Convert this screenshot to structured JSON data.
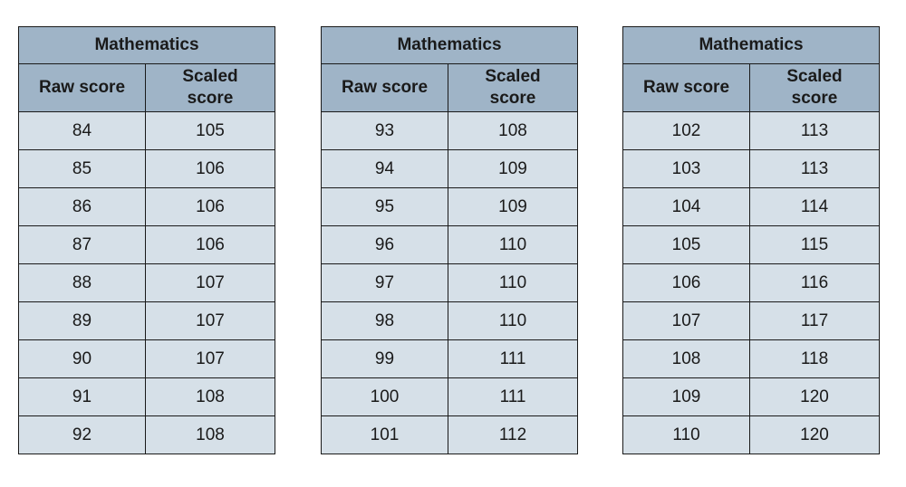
{
  "tables": [
    {
      "title": "Mathematics",
      "col_raw": "Raw score",
      "col_scaled_1": "Scaled",
      "col_scaled_2": "score",
      "rows": [
        [
          "84",
          "105"
        ],
        [
          "85",
          "106"
        ],
        [
          "86",
          "106"
        ],
        [
          "87",
          "106"
        ],
        [
          "88",
          "107"
        ],
        [
          "89",
          "107"
        ],
        [
          "90",
          "107"
        ],
        [
          "91",
          "108"
        ],
        [
          "92",
          "108"
        ]
      ]
    },
    {
      "title": "Mathematics",
      "col_raw": "Raw score",
      "col_scaled_1": "Scaled",
      "col_scaled_2": "score",
      "rows": [
        [
          "93",
          "108"
        ],
        [
          "94",
          "109"
        ],
        [
          "95",
          "109"
        ],
        [
          "96",
          "110"
        ],
        [
          "97",
          "110"
        ],
        [
          "98",
          "110"
        ],
        [
          "99",
          "111"
        ],
        [
          "100",
          "111"
        ],
        [
          "101",
          "112"
        ]
      ]
    },
    {
      "title": "Mathematics",
      "col_raw": "Raw score",
      "col_scaled_1": "Scaled",
      "col_scaled_2": "score",
      "rows": [
        [
          "102",
          "113"
        ],
        [
          "103",
          "113"
        ],
        [
          "104",
          "114"
        ],
        [
          "105",
          "115"
        ],
        [
          "106",
          "116"
        ],
        [
          "107",
          "117"
        ],
        [
          "108",
          "118"
        ],
        [
          "109",
          "120"
        ],
        [
          "110",
          "120"
        ]
      ]
    }
  ]
}
